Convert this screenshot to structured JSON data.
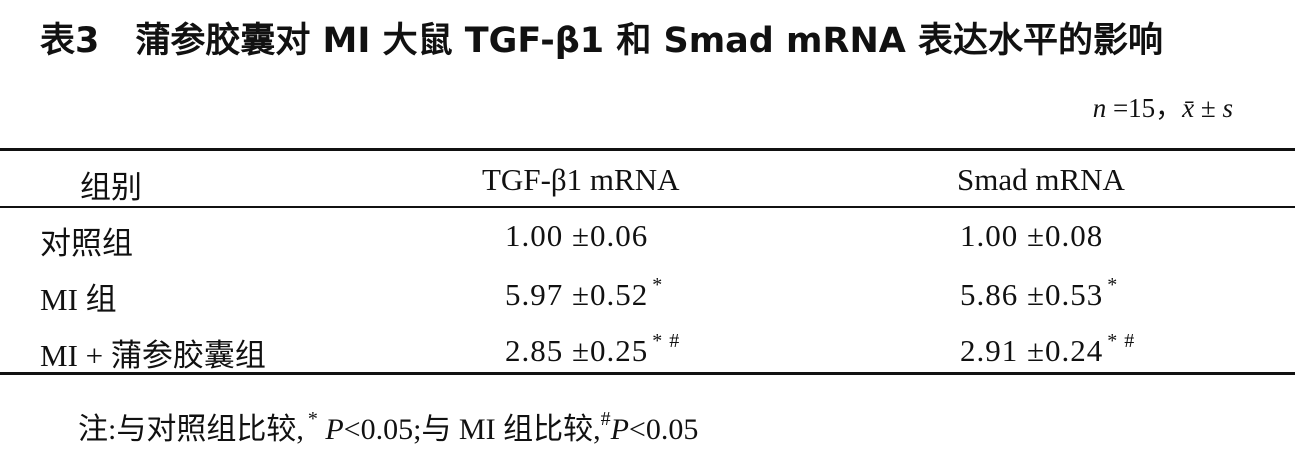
{
  "header": {
    "label": "表3",
    "title": "蒲参胶囊对 MI 大鼠 TGF-β1 和 Smad mRNA 表达水平的影响",
    "subtitle": [
      "n",
      "=15，",
      "x̄",
      "±",
      "s"
    ]
  },
  "table": {
    "columns": [
      "组别",
      "TGF-β1 mRNA",
      "Smad mRNA"
    ],
    "rows": [
      {
        "group": "对照组",
        "tgf": "1.00 ±0.06",
        "smad": "1.00 ±0.08"
      },
      {
        "group": "MI 组",
        "tgf": "5.97 ±0.52",
        "tgf_sup": "*",
        "smad": "5.86 ±0.53",
        "smad_sup": "*"
      },
      {
        "group": "MI + 蒲参胶囊组",
        "tgf": "2.85 ±0.25",
        "tgf_sup": "* #",
        "smad": "2.91 ±0.24",
        "smad_sup": "* #"
      }
    ]
  },
  "note": [
    "注:与对照组比较,",
    "*",
    " P",
    "<0.05;与 MI 组比较,",
    "#",
    "P",
    "<0.05"
  ]
}
